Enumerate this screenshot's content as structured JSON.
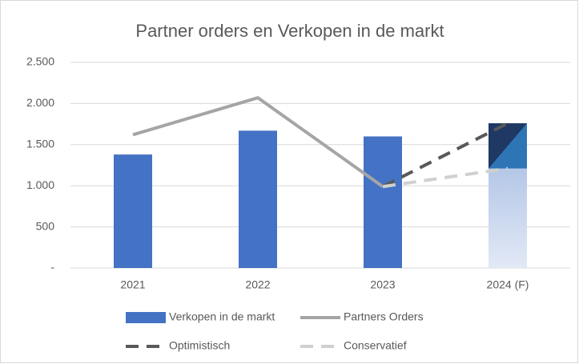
{
  "chart_data": {
    "type": "combo",
    "title": "Partner orders en Verkopen in de markt",
    "categories": [
      "2021",
      "2022",
      "2023",
      "2024 (F)"
    ],
    "ylim": [
      0,
      2500
    ],
    "yticks": [
      {
        "value": 0,
        "label": "-"
      },
      500,
      {
        "value": 1000,
        "label": "1.000"
      },
      {
        "value": 1500,
        "label": "1.500"
      },
      {
        "value": 2000,
        "label": "2.000"
      },
      {
        "value": 2500,
        "label": "2.500"
      }
    ],
    "grid": true,
    "legend": "bottom",
    "series": [
      {
        "name": "Verkopen in de markt",
        "type": "bar",
        "color": "#4472c4",
        "values": [
          1380,
          1670,
          1600,
          null
        ]
      },
      {
        "name": "Partners Orders",
        "type": "line",
        "color": "#a5a5a5",
        "dashed": false,
        "values": [
          1620,
          2070,
          990,
          null
        ]
      },
      {
        "name": "Optimistisch",
        "type": "line",
        "color": "#595959",
        "dashed": true,
        "values": [
          null,
          null,
          990,
          1760
        ]
      },
      {
        "name": "Conservatief",
        "type": "line",
        "color": "#d0d0d0",
        "dashed": true,
        "values": [
          null,
          null,
          990,
          1210
        ]
      }
    ]
  }
}
